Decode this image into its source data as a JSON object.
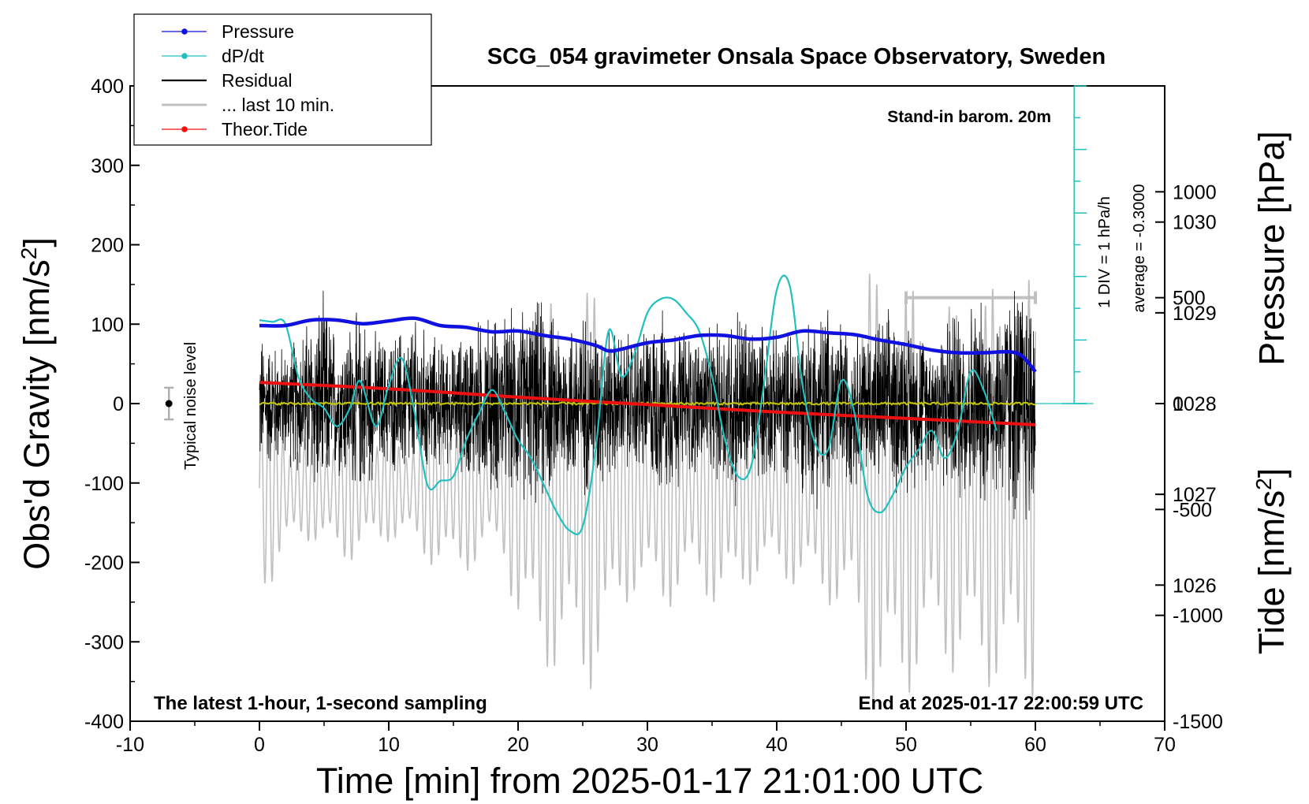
{
  "chart_data": {
    "type": "line",
    "title": "SCG_054 gravimeter Onsala Space Observatory, Sweden",
    "xlabel": "Time [min] from 2025-01-17 21:01:00 UTC",
    "xlim": [
      -10,
      70
    ],
    "x_ticks": [
      -10,
      0,
      10,
      20,
      30,
      40,
      50,
      60,
      70
    ],
    "left_axis": {
      "label_main": "Obs'd Gravity [nm/s",
      "label_sup": "2",
      "label_end": "]",
      "ylim": [
        -400,
        400
      ],
      "ticks": [
        -400,
        -300,
        -200,
        -100,
        0,
        100,
        200,
        300,
        400
      ]
    },
    "right_axis_pressure": {
      "label": "Pressure [hPa]",
      "ylim": [
        1024.5,
        1031.5
      ],
      "ticks": [
        1026,
        1027,
        1028,
        1029,
        1030
      ]
    },
    "right_axis_tide": {
      "label_main": "Tide [nm/s",
      "label_sup": "2",
      "label_end": "]",
      "ylim": [
        -1500,
        1500
      ],
      "ticks": [
        -1500,
        -1000,
        -500,
        0,
        500,
        1000
      ]
    },
    "legend": {
      "placement": "top-left",
      "entries": [
        {
          "label": "Pressure",
          "color": "#1010e0",
          "marker": true
        },
        {
          "label": "dP/dt",
          "color": "#20c0c0",
          "marker": true
        },
        {
          "label": "Residual",
          "color": "#000000",
          "marker": false
        },
        {
          "label": "... last 10 min.",
          "color": "#c0c0c0",
          "marker": false
        },
        {
          "label": "Theor.Tide",
          "color": "#ee1010",
          "marker": true
        }
      ]
    },
    "annotations": {
      "barometer": "Stand-in barom. 20m",
      "div_note": "1 DIV = 1 hPa/h",
      "average_note": "average = -0.3000",
      "noise_label": "Typical noise level",
      "bottom_left": "The latest 1-hour, 1-second sampling",
      "bottom_right": "End at 2025-01-17 22:00:59 UTC"
    },
    "noise_bar": {
      "x": -7,
      "y_center": 0,
      "half_range": 20
    },
    "dpdt_reference_level": 1028,
    "series": [
      {
        "name": "Pressure",
        "axis": "pressure",
        "color": "#1010e0",
        "x": [
          0,
          2,
          4,
          6,
          8,
          10,
          12,
          14,
          16,
          18,
          20,
          22,
          24,
          26,
          27,
          28,
          30,
          32,
          34,
          36,
          38,
          40,
          42,
          44,
          46,
          48,
          50,
          52,
          54,
          56,
          58,
          59,
          60
        ],
        "values": [
          1028.86,
          1028.86,
          1028.92,
          1028.92,
          1028.88,
          1028.91,
          1028.94,
          1028.86,
          1028.84,
          1028.79,
          1028.8,
          1028.75,
          1028.71,
          1028.64,
          1028.58,
          1028.6,
          1028.67,
          1028.7,
          1028.75,
          1028.75,
          1028.71,
          1028.73,
          1028.8,
          1028.78,
          1028.76,
          1028.7,
          1028.65,
          1028.59,
          1028.56,
          1028.56,
          1028.57,
          1028.52,
          1028.35
        ]
      },
      {
        "name": "dP/dt",
        "axis": "pressure",
        "color": "#20c0c0",
        "x": [
          0,
          1,
          2,
          3,
          4,
          5,
          6,
          7,
          7.8,
          9,
          10,
          11,
          12,
          13,
          14,
          15,
          16,
          17,
          18,
          19,
          20,
          21,
          22,
          23,
          24,
          25,
          26,
          27,
          28,
          29,
          30,
          31,
          32,
          33,
          34,
          35,
          36,
          37,
          38,
          39,
          40,
          41,
          42,
          43,
          44,
          45,
          46,
          47,
          48,
          49,
          50,
          51,
          52,
          53,
          54,
          55,
          56,
          57
        ],
        "values": [
          1028.92,
          1028.9,
          1028.88,
          1028.3,
          1028.05,
          1027.95,
          1027.75,
          1027.95,
          1028.25,
          1027.75,
          1028.2,
          1028.5,
          1027.9,
          1027.1,
          1027.15,
          1027.2,
          1027.6,
          1027.9,
          1028.15,
          1027.9,
          1027.6,
          1027.4,
          1027.1,
          1026.8,
          1026.6,
          1026.65,
          1027.5,
          1028.8,
          1028.3,
          1028.55,
          1029.0,
          1029.15,
          1029.15,
          1029.0,
          1028.8,
          1028.3,
          1027.6,
          1027.2,
          1027.3,
          1028.2,
          1029.25,
          1029.3,
          1028.2,
          1027.55,
          1027.5,
          1028.25,
          1027.9,
          1027.0,
          1026.8,
          1027.0,
          1027.3,
          1027.5,
          1027.7,
          1027.4,
          1027.7,
          1028.35,
          1028.15,
          1027.7
        ]
      },
      {
        "name": "Residual",
        "axis": "gravity",
        "color": "#000000",
        "x": [
          0,
          1,
          2,
          3,
          4,
          5,
          6,
          7,
          8,
          9,
          10,
          11,
          12,
          13,
          14,
          15,
          16,
          17,
          18,
          19,
          20,
          21,
          22,
          23,
          24,
          25,
          26,
          27,
          28,
          29,
          30,
          31,
          32,
          33,
          34,
          35,
          36,
          37,
          38,
          39,
          40,
          41,
          42,
          43,
          44,
          45,
          46,
          47,
          48,
          49,
          50,
          51,
          52,
          53,
          54,
          55,
          56,
          57,
          58,
          59,
          60
        ],
        "envelope": [
          100,
          90,
          80,
          100,
          130,
          150,
          100,
          120,
          130,
          100,
          90,
          110,
          120,
          100,
          90,
          80,
          110,
          120,
          130,
          120,
          140,
          140,
          150,
          110,
          120,
          130,
          120,
          110,
          100,
          100,
          110,
          130,
          120,
          110,
          100,
          100,
          130,
          150,
          120,
          110,
          100,
          110,
          120,
          140,
          140,
          120,
          110,
          110,
          120,
          130,
          120,
          110,
          100,
          120,
          140,
          150,
          140,
          130,
          170,
          180,
          180
        ]
      },
      {
        "name": "Residual (low-pass)",
        "axis": "gravity",
        "color": "#c8c800",
        "x": [
          0,
          60
        ],
        "values": [
          0,
          0
        ]
      },
      {
        "name": "... last 10 min.",
        "axis": "tide",
        "color": "#c0c0c0",
        "x": [
          0,
          1,
          2,
          3,
          4,
          5,
          6,
          7,
          8,
          9,
          10,
          11,
          12,
          13,
          14,
          15,
          16,
          17,
          18,
          19,
          20,
          21,
          22,
          23,
          24,
          25,
          26,
          27,
          28,
          29,
          30,
          31,
          32,
          33,
          34,
          35,
          36,
          37,
          38,
          39,
          40,
          41,
          42,
          43,
          44,
          45,
          46,
          47,
          48,
          49,
          50,
          51,
          52,
          53,
          54,
          55,
          56,
          57,
          58,
          59,
          60
        ],
        "center": -400,
        "envelope": [
          500,
          450,
          350,
          250,
          250,
          300,
          350,
          350,
          300,
          300,
          250,
          250,
          300,
          350,
          400,
          450,
          400,
          350,
          300,
          350,
          700,
          800,
          850,
          900,
          900,
          950,
          950,
          800,
          600,
          500,
          550,
          600,
          550,
          500,
          500,
          550,
          600,
          550,
          450,
          450,
          450,
          450,
          500,
          550,
          550,
          600,
          700,
          1000,
          1100,
          1100,
          1000,
          900,
          850,
          850,
          900,
          950,
          950,
          950,
          1000,
          1000,
          1000
        ],
        "range_bar": {
          "x_start": 50,
          "x_end": 60,
          "value": 500
        }
      },
      {
        "name": "Theor.Tide",
        "axis": "tide",
        "color": "#ee1010",
        "x": [
          0,
          10,
          20,
          30,
          40,
          50,
          60
        ],
        "values": [
          100,
          70,
          30,
          -5,
          -40,
          -70,
          -100
        ]
      }
    ]
  }
}
